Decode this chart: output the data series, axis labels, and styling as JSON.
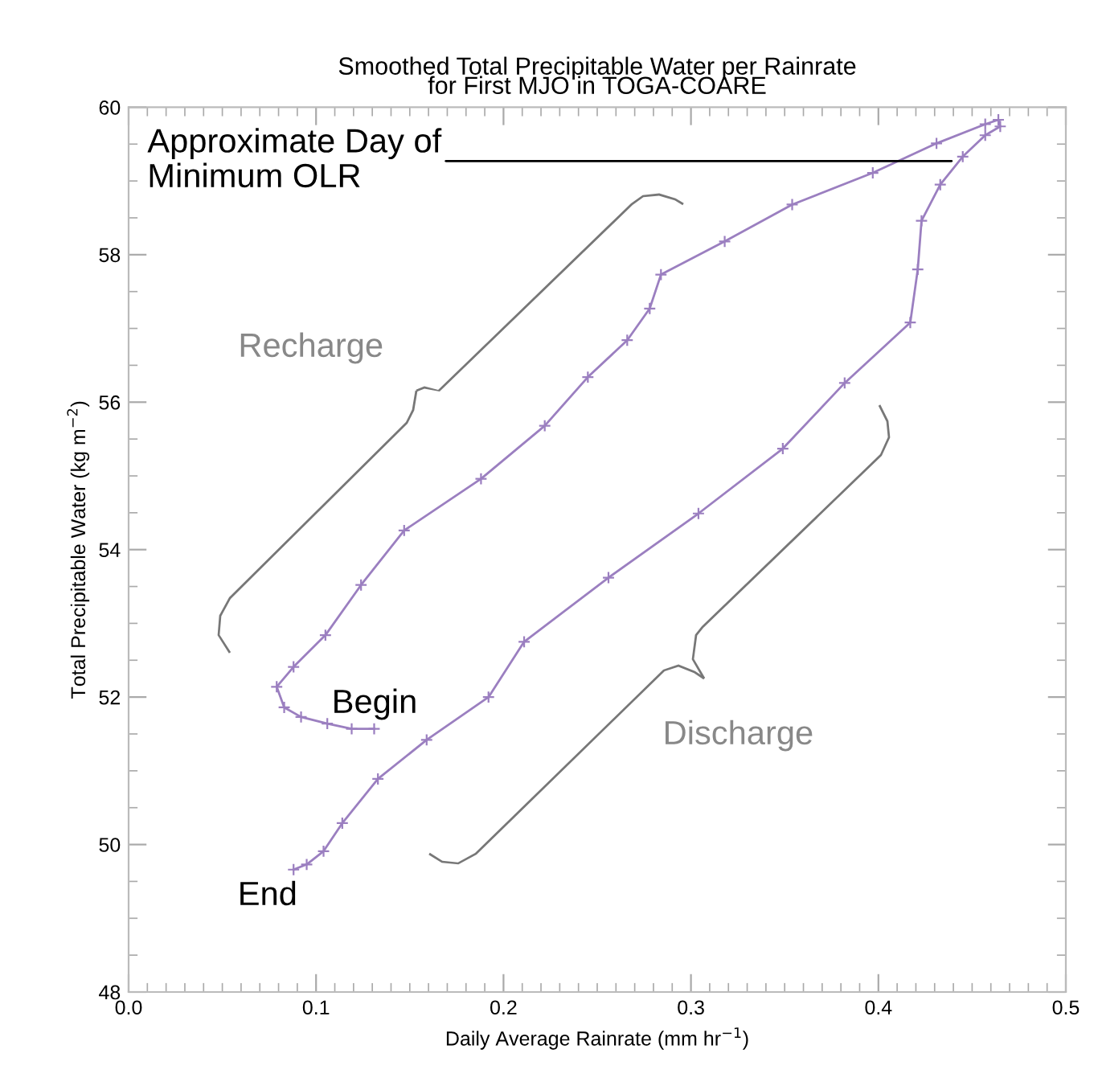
{
  "chart_data": {
    "type": "line",
    "title": "Smoothed Total Precipitable Water per Rainrate\nfor First MJO in TOGA-COARE",
    "xlabel": "Daily Average Rainrate (mm hr$^{−1}$)",
    "ylabel": "Total Precipitable Water (kg m$^{−2}$)",
    "series": [
      {
        "color": "#9b7fc0",
        "x": [
          0.131,
          0.119,
          0.106,
          0.092,
          0.083,
          0.079,
          0.088,
          0.105,
          0.124,
          0.147,
          0.188,
          0.222,
          0.245,
          0.266,
          0.278,
          0.284,
          0.318,
          0.354,
          0.397,
          0.431,
          0.457,
          0.464,
          0.465,
          0.457,
          0.445,
          0.433,
          0.423,
          0.421,
          0.417,
          0.382,
          0.349,
          0.304,
          0.256,
          0.211,
          0.192,
          0.159,
          0.133,
          0.114,
          0.104,
          0.095,
          0.088
        ],
        "values": [
          51.57,
          51.57,
          51.64,
          51.73,
          51.86,
          52.14,
          52.41,
          52.84,
          53.52,
          54.26,
          54.96,
          55.68,
          56.34,
          56.84,
          57.27,
          57.73,
          58.18,
          58.68,
          59.11,
          59.51,
          59.77,
          59.83,
          59.74,
          59.62,
          59.33,
          58.95,
          58.46,
          57.8,
          57.08,
          56.26,
          55.37,
          54.49,
          53.62,
          52.75,
          52.0,
          51.42,
          50.89,
          50.29,
          49.91,
          49.73,
          49.66
        ]
      }
    ],
    "xlim": [
      0.0,
      0.5
    ],
    "xticks": [
      {
        "value": 0.0,
        "label": "0.0"
      },
      0.1,
      0.2,
      0.3,
      0.4,
      0.5
    ],
    "ylim": [
      48,
      60
    ],
    "yticks": [
      48,
      50,
      52,
      54,
      56,
      58,
      60
    ],
    "marker": "cross",
    "line_style": "solid",
    "grid": false,
    "legend": false,
    "annotations": [
      {
        "text": "Approximate Day of\nMinimum OLR",
        "x": 0.439,
        "y": 59.27
      },
      "Recharge",
      "Discharge",
      {
        "text": "Begin",
        "x": 0.131,
        "y": 51.57
      },
      {
        "text": "End",
        "x": 0.088,
        "y": 49.66
      }
    ]
  }
}
